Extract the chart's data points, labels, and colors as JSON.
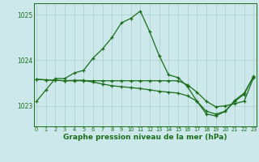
{
  "title": "Graphe pression niveau de la mer (hPa)",
  "bg_color": "#cce8ea",
  "grid_color": "#a8cccc",
  "line_color": "#1a6e1a",
  "ylim": [
    1022.55,
    1025.25
  ],
  "xlim": [
    -0.3,
    23.3
  ],
  "xticks": [
    0,
    1,
    2,
    3,
    4,
    5,
    6,
    7,
    8,
    9,
    10,
    11,
    12,
    13,
    14,
    15,
    16,
    17,
    18,
    19,
    20,
    21,
    22,
    23
  ],
  "yticks": [
    1023,
    1024,
    1025
  ],
  "s1_x": [
    0,
    1,
    2,
    3,
    4,
    5,
    6,
    7,
    8,
    9,
    10,
    11,
    12,
    13,
    14,
    15,
    16,
    17,
    18,
    19,
    20,
    21,
    22,
    23
  ],
  "s1_y": [
    1023.1,
    1023.35,
    1023.6,
    1023.6,
    1023.72,
    1023.78,
    1024.05,
    1024.25,
    1024.5,
    1024.82,
    1024.92,
    1025.08,
    1024.62,
    1024.1,
    1023.68,
    1023.62,
    1023.42,
    1023.1,
    1022.82,
    1022.78,
    1022.88,
    1023.1,
    1023.25,
    1023.65
  ],
  "s2_x": [
    0,
    1,
    2,
    3,
    4,
    5,
    6,
    7,
    8,
    9,
    10,
    11,
    12,
    13,
    14,
    15,
    16,
    17,
    18,
    19,
    20,
    21,
    22,
    23
  ],
  "s2_y": [
    1023.58,
    1023.57,
    1023.56,
    1023.55,
    1023.55,
    1023.55,
    1023.55,
    1023.55,
    1023.55,
    1023.55,
    1023.55,
    1023.55,
    1023.55,
    1023.55,
    1023.55,
    1023.55,
    1023.46,
    1023.3,
    1023.1,
    1022.98,
    1023.0,
    1023.05,
    1023.1,
    1023.62
  ],
  "s3_x": [
    0,
    1,
    2,
    3,
    4,
    5,
    6,
    7,
    8,
    9,
    10,
    11,
    12,
    13,
    14,
    15,
    16,
    17,
    18,
    19,
    20,
    21,
    22,
    23
  ],
  "s3_y": [
    1023.58,
    1023.57,
    1023.56,
    1023.55,
    1023.56,
    1023.56,
    1023.52,
    1023.48,
    1023.44,
    1023.42,
    1023.4,
    1023.38,
    1023.35,
    1023.32,
    1023.3,
    1023.28,
    1023.22,
    1023.1,
    1022.88,
    1022.82,
    1022.88,
    1023.12,
    1023.28,
    1023.64
  ],
  "xlabel_fontsize": 6.5,
  "ytick_fontsize": 5.5,
  "xtick_fontsize": 4.8,
  "lw": 0.9,
  "ms": 3.0
}
